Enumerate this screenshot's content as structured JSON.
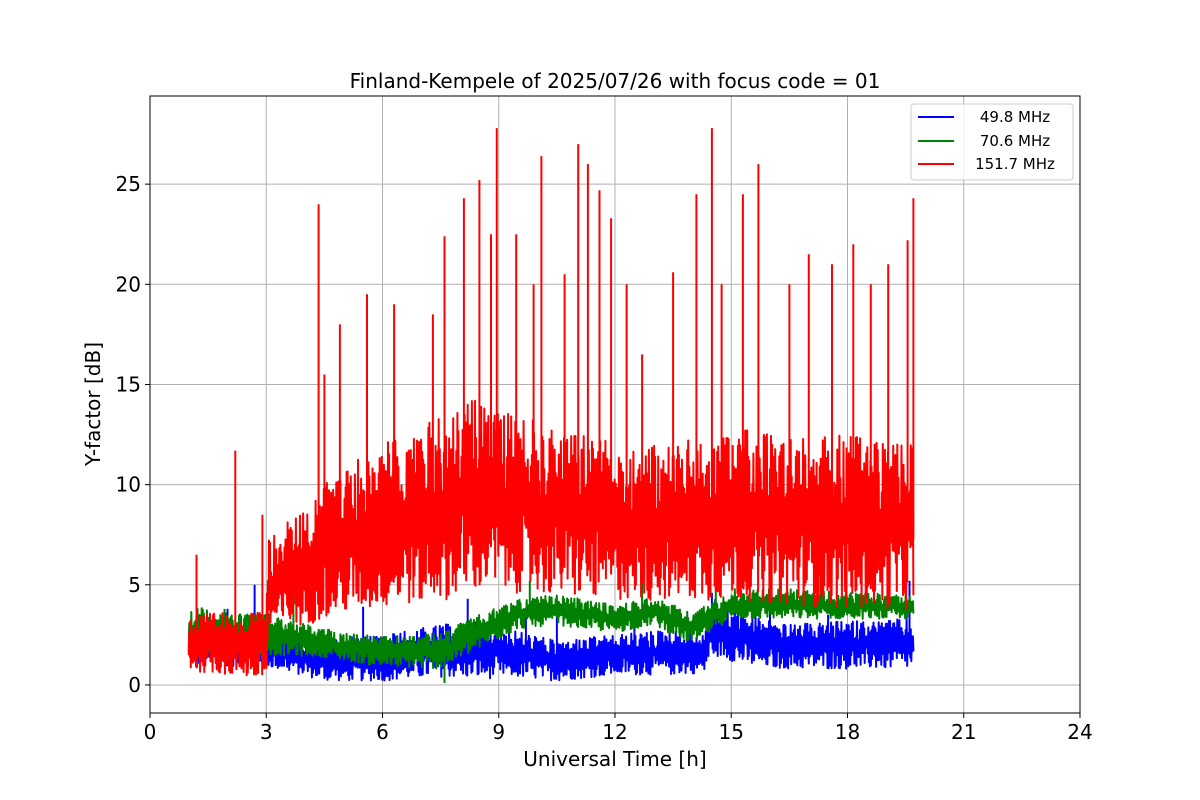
{
  "chart_data": {
    "type": "line",
    "title": "Finland-Kempele of 2025/07/26 with focus code = 01",
    "xlabel": "Universal Time [h]",
    "ylabel": "Y-factor [dB]",
    "xlim": [
      0,
      24
    ],
    "ylim": [
      -1.4,
      29.4
    ],
    "xticks": [
      0,
      3,
      6,
      9,
      12,
      15,
      18,
      21,
      24
    ],
    "yticks": [
      0,
      5,
      10,
      15,
      20,
      25
    ],
    "grid": true,
    "legend_position": "top-right",
    "series": [
      {
        "name": "49.8 MHz",
        "color": "#0000ff",
        "band_anchors": [
          {
            "x": 1.0,
            "lo": 1.0,
            "hi": 3.2
          },
          {
            "x": 3.0,
            "lo": 0.9,
            "hi": 3.0
          },
          {
            "x": 4.5,
            "lo": 0.2,
            "hi": 2.3
          },
          {
            "x": 6.0,
            "lo": 0.2,
            "hi": 2.5
          },
          {
            "x": 7.5,
            "lo": 0.4,
            "hi": 3.0
          },
          {
            "x": 8.6,
            "lo": 0.3,
            "hi": 3.2
          },
          {
            "x": 9.3,
            "lo": 0.4,
            "hi": 2.8
          },
          {
            "x": 10.5,
            "lo": 0.2,
            "hi": 2.2
          },
          {
            "x": 12.0,
            "lo": 0.5,
            "hi": 2.5
          },
          {
            "x": 13.5,
            "lo": 0.5,
            "hi": 2.8
          },
          {
            "x": 14.3,
            "lo": 0.6,
            "hi": 2.5
          },
          {
            "x": 14.5,
            "lo": 1.5,
            "hi": 4.2
          },
          {
            "x": 15.5,
            "lo": 0.9,
            "hi": 3.5
          },
          {
            "x": 16.5,
            "lo": 0.8,
            "hi": 3.0
          },
          {
            "x": 18.0,
            "lo": 0.8,
            "hi": 3.2
          },
          {
            "x": 19.7,
            "lo": 0.8,
            "hi": 3.3
          }
        ],
        "spikes": [
          [
            2.0,
            3.8
          ],
          [
            2.7,
            5.0
          ],
          [
            5.5,
            3.9
          ],
          [
            8.2,
            4.3
          ],
          [
            9.7,
            3.6
          ],
          [
            10.5,
            3.8
          ],
          [
            12.5,
            4.0
          ],
          [
            14.5,
            4.6
          ],
          [
            16.0,
            3.9
          ],
          [
            17.5,
            3.5
          ],
          [
            19.6,
            5.2
          ]
        ]
      },
      {
        "name": "70.6 MHz",
        "color": "#008000",
        "band_anchors": [
          {
            "x": 1.0,
            "lo": 1.6,
            "hi": 3.9
          },
          {
            "x": 3.0,
            "lo": 1.5,
            "hi": 3.6
          },
          {
            "x": 4.5,
            "lo": 1.4,
            "hi": 2.8
          },
          {
            "x": 6.0,
            "lo": 0.9,
            "hi": 2.4
          },
          {
            "x": 7.5,
            "lo": 0.8,
            "hi": 2.6
          },
          {
            "x": 8.5,
            "lo": 1.8,
            "hi": 3.5
          },
          {
            "x": 9.5,
            "lo": 2.8,
            "hi": 4.3
          },
          {
            "x": 10.5,
            "lo": 3.0,
            "hi": 4.5
          },
          {
            "x": 12.0,
            "lo": 2.6,
            "hi": 4.0
          },
          {
            "x": 13.0,
            "lo": 3.0,
            "hi": 4.4
          },
          {
            "x": 14.0,
            "lo": 2.0,
            "hi": 3.6
          },
          {
            "x": 15.0,
            "lo": 3.3,
            "hi": 4.8
          },
          {
            "x": 16.5,
            "lo": 3.3,
            "hi": 4.8
          },
          {
            "x": 18.0,
            "lo": 3.3,
            "hi": 4.6
          },
          {
            "x": 19.7,
            "lo": 3.3,
            "hi": 4.5
          }
        ],
        "spikes": [
          [
            3.7,
            4.6
          ],
          [
            7.6,
            0.1
          ],
          [
            9.8,
            5.2
          ],
          [
            12.7,
            5.3
          ],
          [
            14.6,
            5.5
          ],
          [
            17.3,
            5.8
          ],
          [
            19.5,
            5.3
          ]
        ]
      },
      {
        "name": "151.7 MHz",
        "color": "#ff0000",
        "band_anchors": [
          {
            "x": 1.0,
            "lo": 0.7,
            "hi": 3.5
          },
          {
            "x": 2.0,
            "lo": 0.5,
            "hi": 3.6
          },
          {
            "x": 3.0,
            "lo": 0.2,
            "hi": 3.7
          },
          {
            "x": 3.05,
            "lo": 2.5,
            "hi": 7.2
          },
          {
            "x": 4.0,
            "lo": 3.0,
            "hi": 9.0
          },
          {
            "x": 5.0,
            "lo": 3.5,
            "hi": 11.0
          },
          {
            "x": 6.0,
            "lo": 3.8,
            "hi": 12.0
          },
          {
            "x": 7.5,
            "lo": 4.2,
            "hi": 13.5
          },
          {
            "x": 8.5,
            "lo": 4.6,
            "hi": 14.5
          },
          {
            "x": 9.5,
            "lo": 4.6,
            "hi": 13.5
          },
          {
            "x": 10.5,
            "lo": 4.4,
            "hi": 12.8
          },
          {
            "x": 12.0,
            "lo": 4.2,
            "hi": 12.2
          },
          {
            "x": 13.5,
            "lo": 4.2,
            "hi": 12.0
          },
          {
            "x": 15.0,
            "lo": 4.2,
            "hi": 12.8
          },
          {
            "x": 16.5,
            "lo": 4.0,
            "hi": 12.5
          },
          {
            "x": 18.0,
            "lo": 3.8,
            "hi": 12.5
          },
          {
            "x": 19.7,
            "lo": 3.8,
            "hi": 12.5
          }
        ],
        "spikes": [
          [
            1.2,
            6.5
          ],
          [
            2.2,
            11.7
          ],
          [
            2.9,
            8.5
          ],
          [
            4.35,
            24.0
          ],
          [
            4.5,
            15.5
          ],
          [
            4.9,
            18.0
          ],
          [
            5.6,
            19.5
          ],
          [
            6.3,
            19.0
          ],
          [
            7.3,
            18.5
          ],
          [
            7.6,
            22.4
          ],
          [
            8.1,
            24.3
          ],
          [
            8.5,
            25.2
          ],
          [
            8.8,
            22.5
          ],
          [
            8.95,
            27.8
          ],
          [
            9.45,
            22.5
          ],
          [
            9.9,
            20.0
          ],
          [
            10.1,
            26.4
          ],
          [
            10.7,
            20.5
          ],
          [
            11.05,
            27.0
          ],
          [
            11.3,
            26.0
          ],
          [
            11.6,
            24.7
          ],
          [
            11.9,
            23.3
          ],
          [
            12.3,
            20.0
          ],
          [
            12.7,
            16.5
          ],
          [
            13.5,
            20.6
          ],
          [
            14.1,
            24.5
          ],
          [
            14.5,
            27.8
          ],
          [
            14.75,
            20.0
          ],
          [
            15.3,
            24.5
          ],
          [
            15.7,
            26.0
          ],
          [
            16.5,
            20.0
          ],
          [
            17.0,
            21.5
          ],
          [
            17.6,
            21.0
          ],
          [
            18.15,
            22.0
          ],
          [
            18.6,
            20.0
          ],
          [
            19.05,
            21.0
          ],
          [
            19.55,
            22.2
          ],
          [
            19.7,
            24.3
          ]
        ]
      }
    ]
  }
}
